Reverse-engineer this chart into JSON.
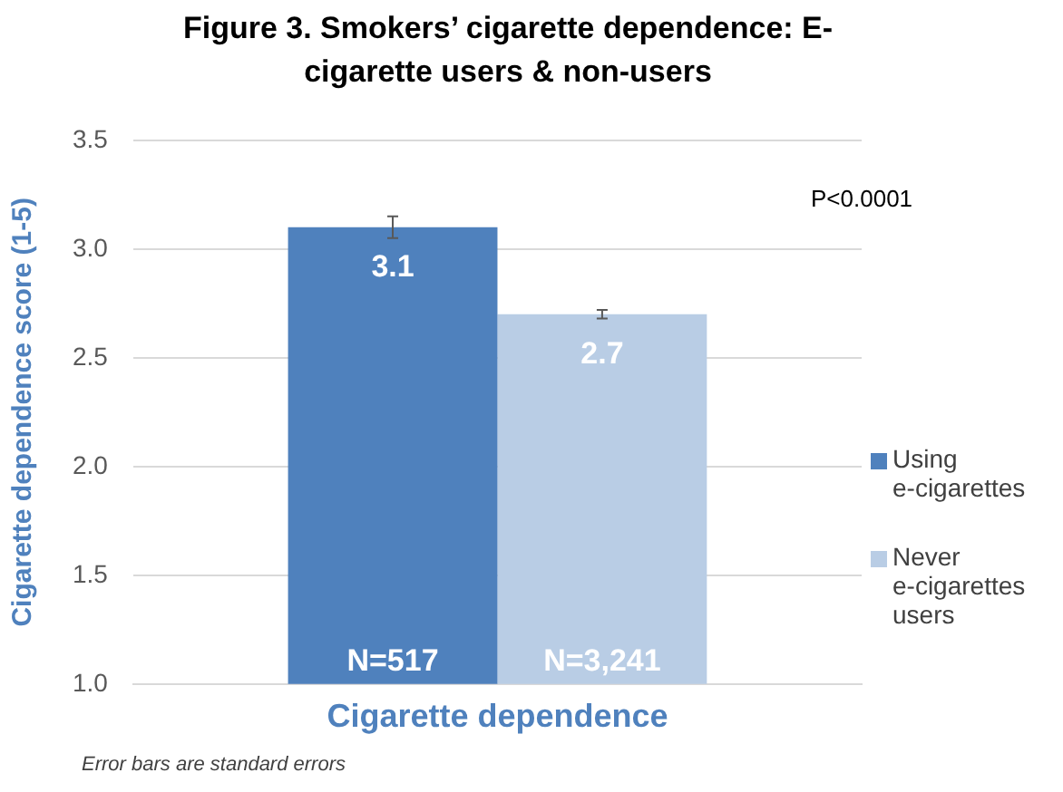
{
  "chart_data": {
    "type": "bar",
    "title": "Figure 3. Smokers’ cigarette dependence: E-cigarette users & non-users",
    "ylabel": "Cigarette dependence score (1-5)",
    "categories": [
      "Cigarette dependence"
    ],
    "series": [
      {
        "name": "Using e-cigarettes",
        "color": "#4f81bd",
        "values": [
          3.1
        ],
        "errors": [
          0.05
        ]
      },
      {
        "name": "Never e-cigarettes users",
        "color": "#b9cde5",
        "values": [
          2.7
        ],
        "errors": [
          0.02
        ]
      }
    ],
    "ylim": [
      1,
      3.5
    ],
    "yticks": [
      {
        "value": 1,
        "label": "1.0"
      },
      1.5,
      {
        "value": 2,
        "label": "2.0"
      },
      2.5,
      {
        "value": 3,
        "label": "3.0"
      },
      3.5
    ],
    "grid": "y",
    "legend": "right",
    "data_labels": true,
    "annotations": [
      "P<0.0001",
      "N=517",
      "N=3,241",
      "Error bars are standard errors"
    ]
  }
}
